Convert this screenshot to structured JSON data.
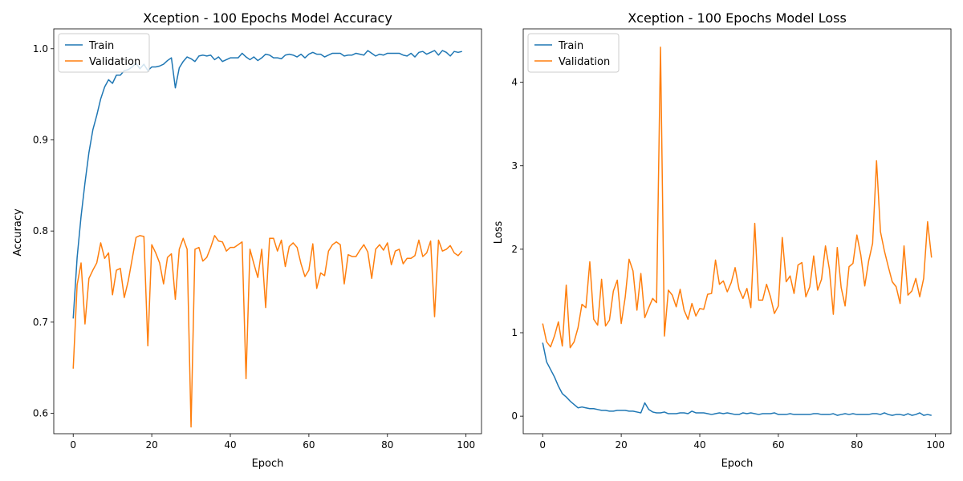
{
  "colors": {
    "train": "#1f77b4",
    "validation": "#ff7f0e"
  },
  "chart_data": [
    {
      "type": "line",
      "title": "Xception - 100 Epochs Model Accuracy",
      "xlabel": "Epoch",
      "ylabel": "Accuracy",
      "xlim": [
        -4.95,
        103.95
      ],
      "ylim": [
        0.5776,
        1.0218
      ],
      "xticks": [
        0,
        20,
        40,
        60,
        80,
        100
      ],
      "yticks": [
        0.6,
        0.7,
        0.8,
        0.9,
        1.0
      ],
      "ytick_labels": [
        "0.6",
        "0.7",
        "0.8",
        "0.9",
        "1.0"
      ],
      "legend": "upper-left",
      "series": [
        {
          "name": "Train",
          "color": "#1f77b4",
          "values": [
            0.704,
            0.771,
            0.816,
            0.853,
            0.886,
            0.911,
            0.927,
            0.945,
            0.958,
            0.966,
            0.962,
            0.971,
            0.971,
            0.976,
            0.977,
            0.98,
            0.984,
            0.978,
            0.983,
            0.976,
            0.98,
            0.98,
            0.981,
            0.983,
            0.987,
            0.99,
            0.957,
            0.979,
            0.986,
            0.991,
            0.989,
            0.986,
            0.992,
            0.993,
            0.992,
            0.993,
            0.988,
            0.991,
            0.986,
            0.988,
            0.99,
            0.99,
            0.99,
            0.995,
            0.991,
            0.988,
            0.991,
            0.987,
            0.99,
            0.994,
            0.993,
            0.99,
            0.99,
            0.989,
            0.993,
            0.994,
            0.993,
            0.991,
            0.994,
            0.99,
            0.994,
            0.996,
            0.994,
            0.994,
            0.991,
            0.993,
            0.995,
            0.995,
            0.995,
            0.992,
            0.993,
            0.993,
            0.995,
            0.994,
            0.993,
            0.998,
            0.995,
            0.992,
            0.994,
            0.993,
            0.995,
            0.995,
            0.995,
            0.995,
            0.993,
            0.992,
            0.995,
            0.991,
            0.996,
            0.997,
            0.994,
            0.996,
            0.998,
            0.993,
            0.998,
            0.996,
            0.992,
            0.997,
            0.996,
            0.997
          ]
        },
        {
          "name": "Validation",
          "color": "#ff7f0e",
          "values": [
            0.649,
            0.741,
            0.765,
            0.698,
            0.748,
            0.757,
            0.765,
            0.787,
            0.77,
            0.776,
            0.73,
            0.757,
            0.759,
            0.727,
            0.745,
            0.769,
            0.793,
            0.795,
            0.794,
            0.674,
            0.785,
            0.776,
            0.765,
            0.742,
            0.771,
            0.775,
            0.725,
            0.78,
            0.792,
            0.78,
            0.585,
            0.78,
            0.782,
            0.767,
            0.771,
            0.782,
            0.795,
            0.789,
            0.788,
            0.778,
            0.782,
            0.782,
            0.785,
            0.788,
            0.638,
            0.78,
            0.764,
            0.749,
            0.78,
            0.716,
            0.792,
            0.792,
            0.778,
            0.79,
            0.761,
            0.783,
            0.787,
            0.782,
            0.764,
            0.75,
            0.757,
            0.786,
            0.737,
            0.754,
            0.751,
            0.778,
            0.785,
            0.788,
            0.785,
            0.742,
            0.774,
            0.772,
            0.772,
            0.779,
            0.785,
            0.777,
            0.748,
            0.78,
            0.785,
            0.779,
            0.787,
            0.763,
            0.778,
            0.78,
            0.764,
            0.77,
            0.77,
            0.773,
            0.79,
            0.772,
            0.776,
            0.789,
            0.706,
            0.79,
            0.778,
            0.78,
            0.784,
            0.776,
            0.773,
            0.778
          ]
        }
      ]
    },
    {
      "type": "line",
      "title": "Xception - 100 Epochs Model Loss",
      "xlabel": "Epoch",
      "ylabel": "Loss",
      "xlim": [
        -4.95,
        103.95
      ],
      "ylim": [
        -0.21,
        4.64
      ],
      "xticks": [
        0,
        20,
        40,
        60,
        80,
        100
      ],
      "yticks": [
        0,
        1,
        2,
        3,
        4
      ],
      "ytick_labels": [
        "0",
        "1",
        "2",
        "3",
        "4"
      ],
      "legend": "upper-left",
      "series": [
        {
          "name": "Train",
          "color": "#1f77b4",
          "values": [
            0.88,
            0.65,
            0.56,
            0.47,
            0.36,
            0.27,
            0.23,
            0.18,
            0.14,
            0.1,
            0.11,
            0.1,
            0.09,
            0.09,
            0.08,
            0.07,
            0.07,
            0.06,
            0.06,
            0.07,
            0.07,
            0.07,
            0.06,
            0.06,
            0.05,
            0.04,
            0.16,
            0.08,
            0.05,
            0.04,
            0.04,
            0.05,
            0.03,
            0.03,
            0.03,
            0.04,
            0.04,
            0.03,
            0.06,
            0.04,
            0.04,
            0.04,
            0.03,
            0.02,
            0.03,
            0.04,
            0.03,
            0.04,
            0.03,
            0.02,
            0.02,
            0.04,
            0.03,
            0.04,
            0.03,
            0.02,
            0.03,
            0.03,
            0.03,
            0.04,
            0.02,
            0.02,
            0.02,
            0.03,
            0.02,
            0.02,
            0.02,
            0.02,
            0.02,
            0.03,
            0.03,
            0.02,
            0.02,
            0.02,
            0.03,
            0.01,
            0.02,
            0.03,
            0.02,
            0.03,
            0.02,
            0.02,
            0.02,
            0.02,
            0.03,
            0.03,
            0.02,
            0.04,
            0.02,
            0.01,
            0.02,
            0.02,
            0.01,
            0.03,
            0.01,
            0.02,
            0.04,
            0.01,
            0.02,
            0.01
          ]
        },
        {
          "name": "Validation",
          "color": "#ff7f0e",
          "values": [
            1.11,
            0.89,
            0.83,
            0.96,
            1.13,
            0.84,
            1.57,
            0.82,
            0.89,
            1.06,
            1.34,
            1.3,
            1.85,
            1.16,
            1.09,
            1.64,
            1.08,
            1.15,
            1.5,
            1.63,
            1.11,
            1.42,
            1.88,
            1.74,
            1.27,
            1.71,
            1.18,
            1.3,
            1.41,
            1.36,
            4.42,
            0.96,
            1.51,
            1.45,
            1.31,
            1.52,
            1.27,
            1.16,
            1.35,
            1.2,
            1.29,
            1.28,
            1.46,
            1.47,
            1.87,
            1.58,
            1.62,
            1.49,
            1.6,
            1.78,
            1.52,
            1.41,
            1.53,
            1.3,
            2.31,
            1.39,
            1.39,
            1.58,
            1.43,
            1.23,
            1.32,
            2.14,
            1.61,
            1.68,
            1.47,
            1.81,
            1.84,
            1.43,
            1.55,
            1.92,
            1.51,
            1.64,
            2.04,
            1.76,
            1.22,
            2.02,
            1.54,
            1.32,
            1.79,
            1.83,
            2.17,
            1.93,
            1.56,
            1.86,
            2.07,
            3.06,
            2.21,
            1.98,
            1.79,
            1.61,
            1.55,
            1.35,
            2.04,
            1.45,
            1.5,
            1.65,
            1.43,
            1.65,
            2.33,
            1.9
          ]
        }
      ]
    }
  ]
}
